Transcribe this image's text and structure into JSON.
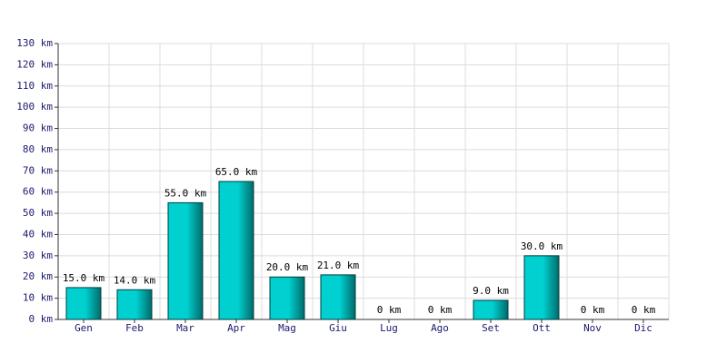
{
  "chart_data": {
    "type": "bar",
    "categories": [
      "Gen",
      "Feb",
      "Mar",
      "Apr",
      "Mag",
      "Giu",
      "Lug",
      "Ago",
      "Set",
      "Ott",
      "Nov",
      "Dic"
    ],
    "values": [
      15,
      14,
      55,
      65,
      20,
      21,
      0,
      0,
      9,
      30,
      0,
      0
    ],
    "value_labels": [
      "15.0 km",
      "14.0 km",
      "55.0 km",
      "65.0 km",
      "20.0 km",
      "21.0 km",
      "0 km",
      "0 km",
      "9.0 km",
      "30.0 km",
      "0 km",
      "0 km"
    ],
    "color": "#00d0d0",
    "ylim": [
      0,
      130
    ],
    "yticks": [
      {
        "value": 0,
        "label": "0 km"
      },
      {
        "value": 10,
        "label": "10 km"
      },
      {
        "value": 20,
        "label": "20 km"
      },
      {
        "value": 30,
        "label": "30 km"
      },
      {
        "value": 40,
        "label": "40 km"
      },
      {
        "value": 50,
        "label": "50 km"
      },
      {
        "value": 60,
        "label": "60 km"
      },
      {
        "value": 70,
        "label": "70 km"
      },
      {
        "value": 80,
        "label": "80 km"
      },
      {
        "value": 90,
        "label": "90 km"
      },
      {
        "value": 100,
        "label": "100 km"
      },
      {
        "value": 110,
        "label": "110 km"
      },
      {
        "value": 120,
        "label": "120 km"
      },
      {
        "value": 130,
        "label": "130 km"
      }
    ],
    "grid": true
  }
}
